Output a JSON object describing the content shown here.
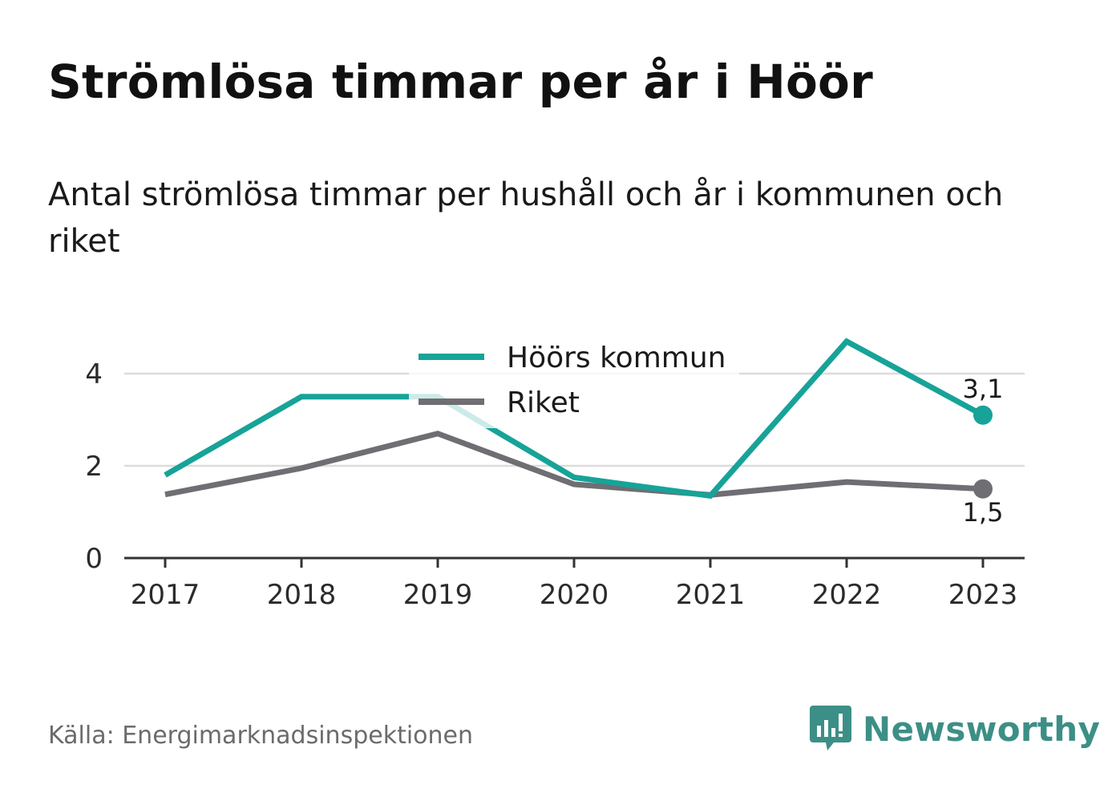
{
  "title": "Strömlösa timmar per år i Höör",
  "subtitle": "Antal strömlösa timmar per hushåll och år i kommunen och riket",
  "source": "Källa: Energimarknadsinspektionen",
  "brand": {
    "name": "Newsworthy",
    "icon": "newsworthy-logo-icon",
    "color": "#3c8f86"
  },
  "chart_data": {
    "type": "line",
    "x": [
      "2017",
      "2018",
      "2019",
      "2020",
      "2021",
      "2022",
      "2023"
    ],
    "ylim": [
      0,
      4.8
    ],
    "yticks": [
      0,
      2,
      4
    ],
    "grid": true,
    "legend_position": "top-center",
    "series": [
      {
        "name": "Höörs kommun",
        "color": "#17a398",
        "values": [
          1.8,
          3.5,
          3.5,
          1.75,
          1.35,
          4.7,
          3.1
        ],
        "end_label": "3,1"
      },
      {
        "name": "Riket",
        "color": "#6e6e73",
        "values": [
          1.38,
          1.95,
          2.7,
          1.6,
          1.37,
          1.65,
          1.5
        ],
        "end_label": "1,5"
      }
    ]
  }
}
